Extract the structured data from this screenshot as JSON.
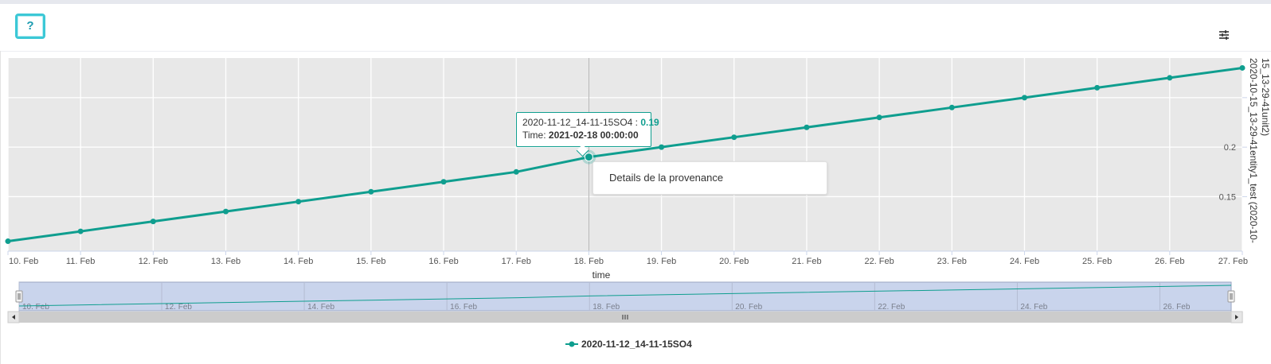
{
  "toolbar": {
    "help_label": "?",
    "menu_icon": "sliders-icon"
  },
  "tooltip": {
    "series_name": "2020-11-12_14-11-15SO4",
    "separator": " : ",
    "value": "0.19",
    "time_label": "Time: ",
    "time_value": "2021-02-18 00:00:00"
  },
  "context_menu": {
    "items": [
      "Details de la provenance"
    ]
  },
  "colors": {
    "series": "#0f9e8f",
    "plot_background": "#e8e8e8",
    "navigator_selection": "#c9d4ec"
  },
  "chart_data": {
    "type": "line",
    "x": [
      "2021-02-10",
      "2021-02-11",
      "2021-02-12",
      "2021-02-13",
      "2021-02-14",
      "2021-02-15",
      "2021-02-16",
      "2021-02-17",
      "2021-02-18",
      "2021-02-19",
      "2021-02-20",
      "2021-02-21",
      "2021-02-22",
      "2021-02-23",
      "2021-02-24",
      "2021-02-25",
      "2021-02-26",
      "2021-02-27"
    ],
    "series": [
      {
        "name": "2020-11-12_14-11-15SO4",
        "values": [
          0.105,
          0.115,
          0.125,
          0.135,
          0.145,
          0.155,
          0.165,
          0.175,
          0.19,
          0.2,
          0.21,
          0.22,
          0.23,
          0.24,
          0.25,
          0.26,
          0.27,
          0.28
        ]
      }
    ],
    "xlabel": "time",
    "ylabel": "2020-10-15_13-29-41entity1_test (2020-10-15_13-29-41unit2)",
    "x_tick_labels": [
      "10. Feb",
      "11. Feb",
      "12. Feb",
      "13. Feb",
      "14. Feb",
      "15. Feb",
      "16. Feb",
      "17. Feb",
      "18. Feb",
      "19. Feb",
      "20. Feb",
      "21. Feb",
      "22. Feb",
      "23. Feb",
      "24. Feb",
      "25. Feb",
      "26. Feb",
      "27. Feb"
    ],
    "y_ticks": [
      0.15,
      0.2,
      0.25
    ],
    "y_tick_labels": [
      "0.15",
      "0.2",
      ""
    ],
    "ylim": [
      0.095,
      0.29
    ],
    "yaxis_side": "right",
    "grid": true,
    "legend_placement": "bottom",
    "navigator": {
      "x_tick_labels": [
        "10. Feb",
        "12. Feb",
        "14. Feb",
        "16. Feb",
        "18. Feb",
        "20. Feb",
        "22. Feb",
        "24. Feb",
        "26. Feb"
      ]
    }
  }
}
